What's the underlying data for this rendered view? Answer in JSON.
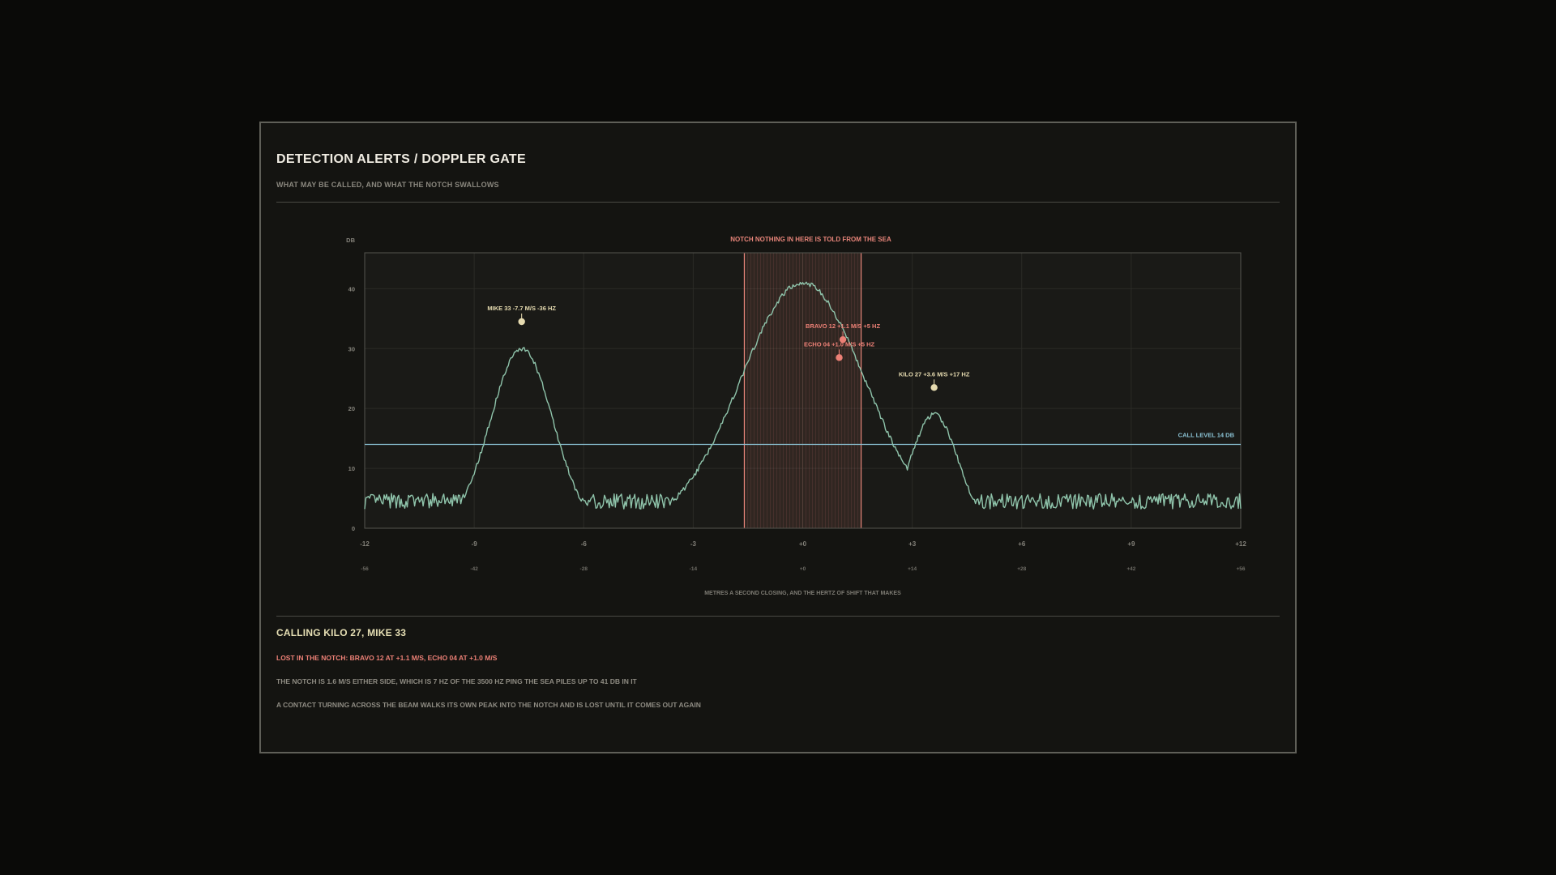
{
  "header": {
    "title": "DETECTION ALERTS / DOPPLER GATE",
    "subtitle": "WHAT MAY BE CALLED, AND WHAT THE NOTCH SWALLOWS"
  },
  "colors": {
    "background": "#0a0a08",
    "panel": "#141411",
    "trace": "#8fc4ab",
    "call_level": "#8cc4d6",
    "notch": "#e8857a",
    "called_marker": "#e6dbb0",
    "lost_marker": "#ec8076"
  },
  "chart_data": {
    "type": "line",
    "title": "NOTCH  NOTHING IN HERE IS TOLD FROM THE SEA",
    "ylabel": "DB",
    "xlabel": "METRES A SECOND CLOSING, AND THE HERTZ OF SHIFT THAT MAKES",
    "ylim": [
      0,
      46
    ],
    "xlim": [
      -12,
      12
    ],
    "y_ticks": [
      0,
      10,
      20,
      30,
      40
    ],
    "x_ticks": [
      "-12",
      "-9",
      "-6",
      "-3",
      "+0",
      "+3",
      "+6",
      "+9",
      "+12"
    ],
    "x_ticks_hz": [
      "-56",
      "-42",
      "-28",
      "-14",
      "+0",
      "+14",
      "+28",
      "+42",
      "+56"
    ],
    "grid": true,
    "notch": {
      "from": -1.6,
      "to": 1.6
    },
    "call_level": {
      "value": 14,
      "label": "CALL LEVEL 14 DB"
    },
    "noise_floor_db": 4.5,
    "peaks": [
      {
        "x": -7.7,
        "height": 30,
        "width": 0.85
      },
      {
        "x": 0.0,
        "height": 41,
        "width": 1.7
      },
      {
        "x": 3.6,
        "height": 19,
        "width": 0.65
      }
    ],
    "contacts": [
      {
        "label": "MIKE 33 -7.7 M/S -36 HZ",
        "x": -7.7,
        "y": 34.5,
        "status": "called"
      },
      {
        "label": "BRAVO 12 +1.1 M/S +5 HZ",
        "x": 1.1,
        "y": 31.5,
        "status": "lost"
      },
      {
        "label": "ECHO 04 +1.0 M/S +5 HZ",
        "x": 1.0,
        "y": 28.5,
        "status": "lost"
      },
      {
        "label": "KILO 27 +3.6 M/S +17 HZ",
        "x": 3.6,
        "y": 23.5,
        "status": "called"
      }
    ]
  },
  "summary": {
    "calls_title": "CALLING KILO 27, MIKE 33",
    "lost_line": "LOST IN THE NOTCH: BRAVO 12 AT +1.1 M/S, ECHO 04 AT +1.0 M/S",
    "note1": "THE NOTCH IS 1.6 M/S EITHER SIDE, WHICH IS 7 HZ OF THE 3500 HZ PING   THE SEA PILES UP TO 41 DB IN IT",
    "note2": "A CONTACT TURNING ACROSS THE BEAM WALKS ITS OWN PEAK INTO THE NOTCH AND IS LOST UNTIL IT COMES OUT AGAIN"
  }
}
